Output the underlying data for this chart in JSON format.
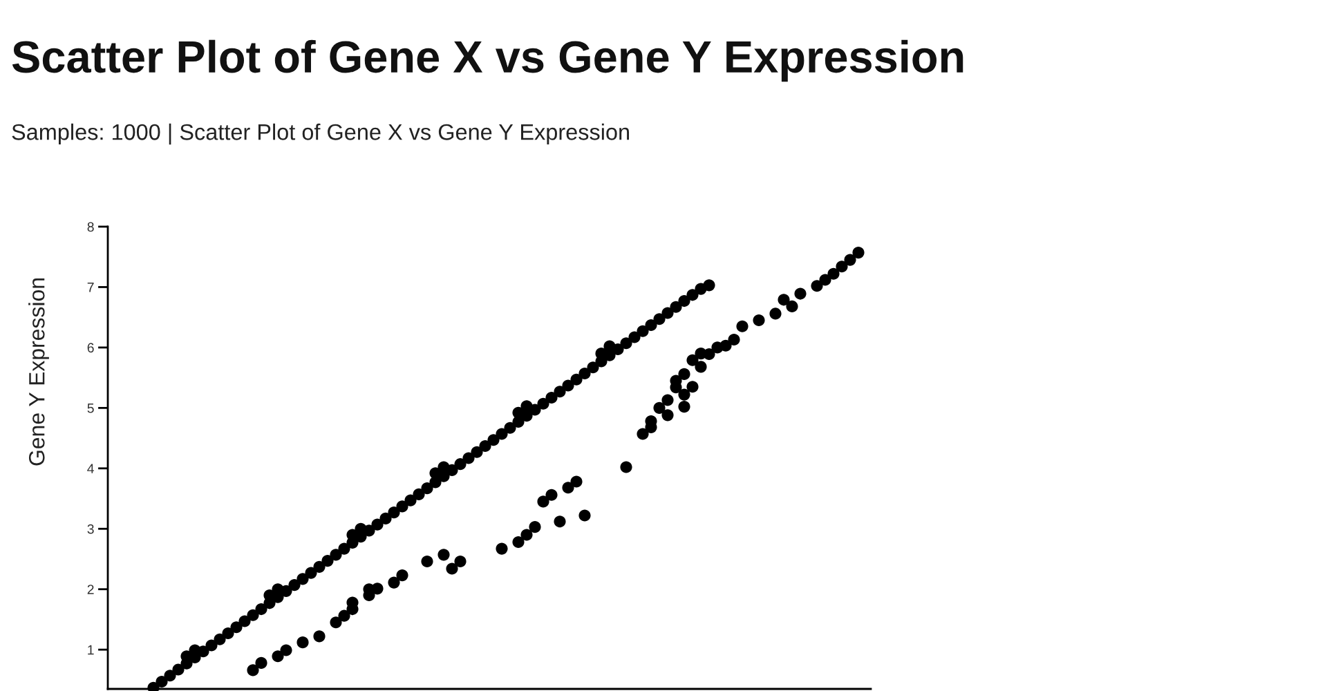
{
  "chart_data": {
    "type": "scatter",
    "title": "Scatter Plot of Gene X vs Gene Y Expression",
    "subtitle": "Samples: 1000 | Scatter Plot of Gene X vs Gene Y Expression",
    "ylabel": "Gene Y Expression",
    "categories": [
      null,
      null,
      null,
      null,
      null,
      null,
      null,
      null,
      null,
      null,
      null,
      null,
      null,
      null,
      null,
      null,
      null,
      null,
      null,
      null,
      null,
      null,
      null,
      null,
      null,
      null,
      null,
      null,
      null,
      null,
      null,
      null,
      null,
      null,
      null,
      null,
      null,
      null,
      null,
      null,
      null,
      null,
      null,
      null,
      null,
      null,
      null,
      null,
      null,
      null,
      null,
      null,
      null,
      null,
      null,
      null,
      null,
      null,
      null,
      null,
      null,
      null,
      null,
      null,
      null,
      null,
      null,
      null,
      null,
      null,
      null,
      null,
      null,
      null,
      null,
      null,
      null,
      null,
      null,
      null,
      null,
      null,
      null,
      null,
      null,
      null,
      null,
      null,
      null,
      null,
      null,
      null
    ],
    "series": [
      {
        "color": "#000000",
        "values": [
          null,
          null,
          null,
          null,
          null,
          0.37,
          0.47,
          0.57,
          0.67,
          0.77,
          0.87,
          0.97,
          1.07,
          1.17,
          1.27,
          1.37,
          1.47,
          1.57,
          1.67,
          1.77,
          1.87,
          1.97,
          2.07,
          2.17,
          2.27,
          2.37,
          2.47,
          2.57,
          2.67,
          2.77,
          2.87,
          2.97,
          3.07,
          3.17,
          3.27,
          3.37,
          3.47,
          3.57,
          3.67,
          3.77,
          3.87,
          3.97,
          4.07,
          4.17,
          4.27,
          4.37,
          4.47,
          4.57,
          4.67,
          4.77,
          4.87,
          4.97,
          5.07,
          5.17,
          5.27,
          5.37,
          5.47,
          5.57,
          5.67,
          5.77,
          5.87,
          5.97,
          6.07,
          6.17,
          6.27,
          6.37,
          6.47,
          6.57,
          6.67,
          6.77,
          6.87,
          6.97,
          7.03,
          null,
          null,
          null,
          null,
          null,
          null,
          null,
          null,
          null,
          null,
          null,
          null,
          null,
          null,
          null,
          null,
          null,
          null,
          null
        ]
      },
      {
        "color": "#000000",
        "values": [
          null,
          null,
          null,
          null,
          null,
          null,
          null,
          null,
          null,
          0.89,
          0.99,
          null,
          null,
          null,
          null,
          null,
          null,
          null,
          null,
          1.9,
          2.0,
          null,
          null,
          null,
          null,
          null,
          null,
          null,
          null,
          2.9,
          3.0,
          null,
          null,
          null,
          null,
          null,
          null,
          null,
          null,
          3.92,
          4.02,
          null,
          null,
          null,
          null,
          null,
          null,
          null,
          null,
          4.92,
          5.03,
          null,
          null,
          null,
          null,
          null,
          null,
          null,
          null,
          5.9,
          6.02,
          null,
          null,
          null,
          null,
          null,
          null,
          null,
          null,
          null,
          null,
          null,
          null,
          null,
          null,
          null,
          null,
          null,
          null,
          null,
          null,
          null,
          null,
          null,
          null,
          null,
          null,
          null,
          null,
          null,
          null,
          null
        ]
      },
      {
        "color": "#000000",
        "values": [
          null,
          null,
          null,
          null,
          null,
          null,
          null,
          null,
          null,
          null,
          null,
          null,
          null,
          null,
          null,
          null,
          null,
          0.66,
          0.78,
          null,
          0.89,
          0.99,
          null,
          1.12,
          null,
          1.22,
          null,
          1.45,
          1.56,
          1.67,
          null,
          1.9,
          2.01,
          null,
          2.11,
          2.23,
          null,
          null,
          2.46,
          null,
          2.57,
          2.34,
          2.46,
          null,
          null,
          null,
          null,
          2.67,
          null,
          2.78,
          2.9,
          3.03,
          3.45,
          3.56,
          3.12,
          3.68,
          3.78,
          3.22,
          null,
          null,
          null,
          null,
          4.02,
          null,
          4.57,
          4.68,
          5.0,
          5.13,
          5.34,
          5.56,
          5.35,
          5.68,
          5.89,
          6.0,
          6.03,
          6.13,
          6.35,
          null,
          6.45,
          null,
          6.56,
          6.79,
          6.68,
          6.89,
          null,
          7.02,
          7.12,
          7.22,
          7.34,
          7.45,
          7.57,
          null
        ]
      },
      {
        "color": "#000000",
        "values": [
          null,
          null,
          null,
          null,
          null,
          null,
          null,
          null,
          null,
          null,
          null,
          null,
          null,
          null,
          null,
          null,
          null,
          null,
          null,
          null,
          null,
          null,
          null,
          null,
          null,
          null,
          null,
          null,
          null,
          1.78,
          null,
          2.0,
          null,
          null,
          null,
          null,
          null,
          null,
          null,
          null,
          null,
          null,
          null,
          null,
          null,
          null,
          null,
          null,
          null,
          null,
          null,
          null,
          null,
          null,
          null,
          null,
          null,
          null,
          null,
          null,
          null,
          null,
          null,
          null,
          null,
          4.78,
          null,
          4.88,
          5.45,
          5.02,
          5.79,
          5.9,
          null,
          null,
          null,
          null,
          null,
          null,
          null,
          null,
          null,
          null,
          null,
          null,
          null,
          null,
          null,
          null,
          null,
          null,
          null,
          null
        ]
      },
      {
        "color": "#000000",
        "values": [
          null,
          null,
          null,
          null,
          null,
          null,
          null,
          null,
          null,
          null,
          null,
          null,
          null,
          null,
          null,
          null,
          null,
          null,
          null,
          null,
          null,
          null,
          null,
          null,
          null,
          null,
          null,
          null,
          null,
          null,
          null,
          null,
          null,
          null,
          null,
          null,
          null,
          null,
          null,
          null,
          null,
          null,
          null,
          null,
          null,
          null,
          null,
          null,
          null,
          null,
          null,
          null,
          null,
          null,
          null,
          null,
          null,
          null,
          null,
          null,
          null,
          null,
          null,
          null,
          null,
          null,
          null,
          null,
          null,
          5.22,
          null,
          null,
          null,
          null,
          null,
          null,
          null,
          null,
          null,
          null,
          null,
          null,
          null,
          null,
          null,
          null,
          null,
          null,
          null,
          null,
          null,
          null
        ]
      }
    ],
    "ylim": [
      0.35,
      8
    ],
    "yticks": [
      1,
      2,
      3,
      4,
      5,
      6,
      7,
      8
    ],
    "marker": "circle",
    "tick_labels": "y"
  }
}
